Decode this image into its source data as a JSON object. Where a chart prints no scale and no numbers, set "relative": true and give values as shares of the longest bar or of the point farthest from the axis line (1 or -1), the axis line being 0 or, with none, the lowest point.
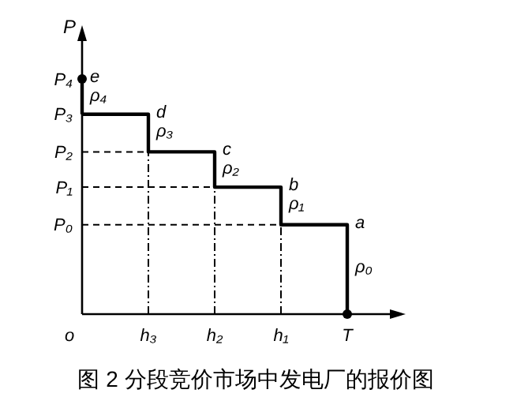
{
  "chart_data": {
    "type": "step",
    "title": "图 2 分段竞价市场中发电厂的报价图",
    "ylabel": "P",
    "relative": true,
    "categories": [
      "o",
      "h₃",
      "h₂",
      "h₁",
      "T"
    ],
    "series": [
      {
        "color": "#000000",
        "values": [
          0.85,
          0.69,
          0.54,
          0.38,
          0
        ]
      },
      {
        "type": "line",
        "color": "#000000",
        "x": [
          "o",
          "o"
        ],
        "values": [
          1,
          0.85
        ]
      },
      {
        "type": "scatter",
        "color": "#000000",
        "marker": "circle",
        "x": [
          "o",
          "T"
        ],
        "values": [
          1,
          0
        ]
      }
    ],
    "ref_lines": [
      {
        "axis": "y",
        "value": 0.38,
        "label": "P₀",
        "line_style": "dashed"
      },
      {
        "axis": "y",
        "value": 0.54,
        "label": "P₁",
        "line_style": "dashed"
      },
      {
        "axis": "y",
        "value": 0.69,
        "label": "P₂",
        "line_style": "dashed"
      },
      {
        "axis": "x",
        "value": "h₃",
        "line_style": "dashed"
      },
      {
        "axis": "x",
        "value": "h₂",
        "line_style": "dashed"
      },
      {
        "axis": "x",
        "value": "h₁",
        "line_style": "dashed"
      }
    ],
    "annotations": [
      {
        "text": "P₃",
        "x": "o",
        "y": 0.85
      },
      {
        "text": "P₄",
        "x": "o",
        "y": 1
      },
      {
        "text": "d",
        "x": "h₃",
        "y": 0.85
      },
      {
        "text": "ρ₃",
        "x": "h₃",
        "y": 0.77
      },
      {
        "text": "c",
        "x": "h₂",
        "y": 0.69
      },
      {
        "text": "ρ₂",
        "x": "h₂",
        "y": 0.61
      },
      {
        "text": "b",
        "x": "h₁",
        "y": 0.54
      },
      {
        "text": "ρ₁",
        "x": "h₁",
        "y": 0.46
      },
      {
        "text": "a",
        "x": "T",
        "y": 0.38
      },
      {
        "text": "ρ₀",
        "x": "T",
        "y": 0.19
      },
      {
        "text": "e",
        "x": "o",
        "y": 1
      },
      {
        "text": "ρ₄",
        "x": "o",
        "y": 0.92
      }
    ]
  }
}
